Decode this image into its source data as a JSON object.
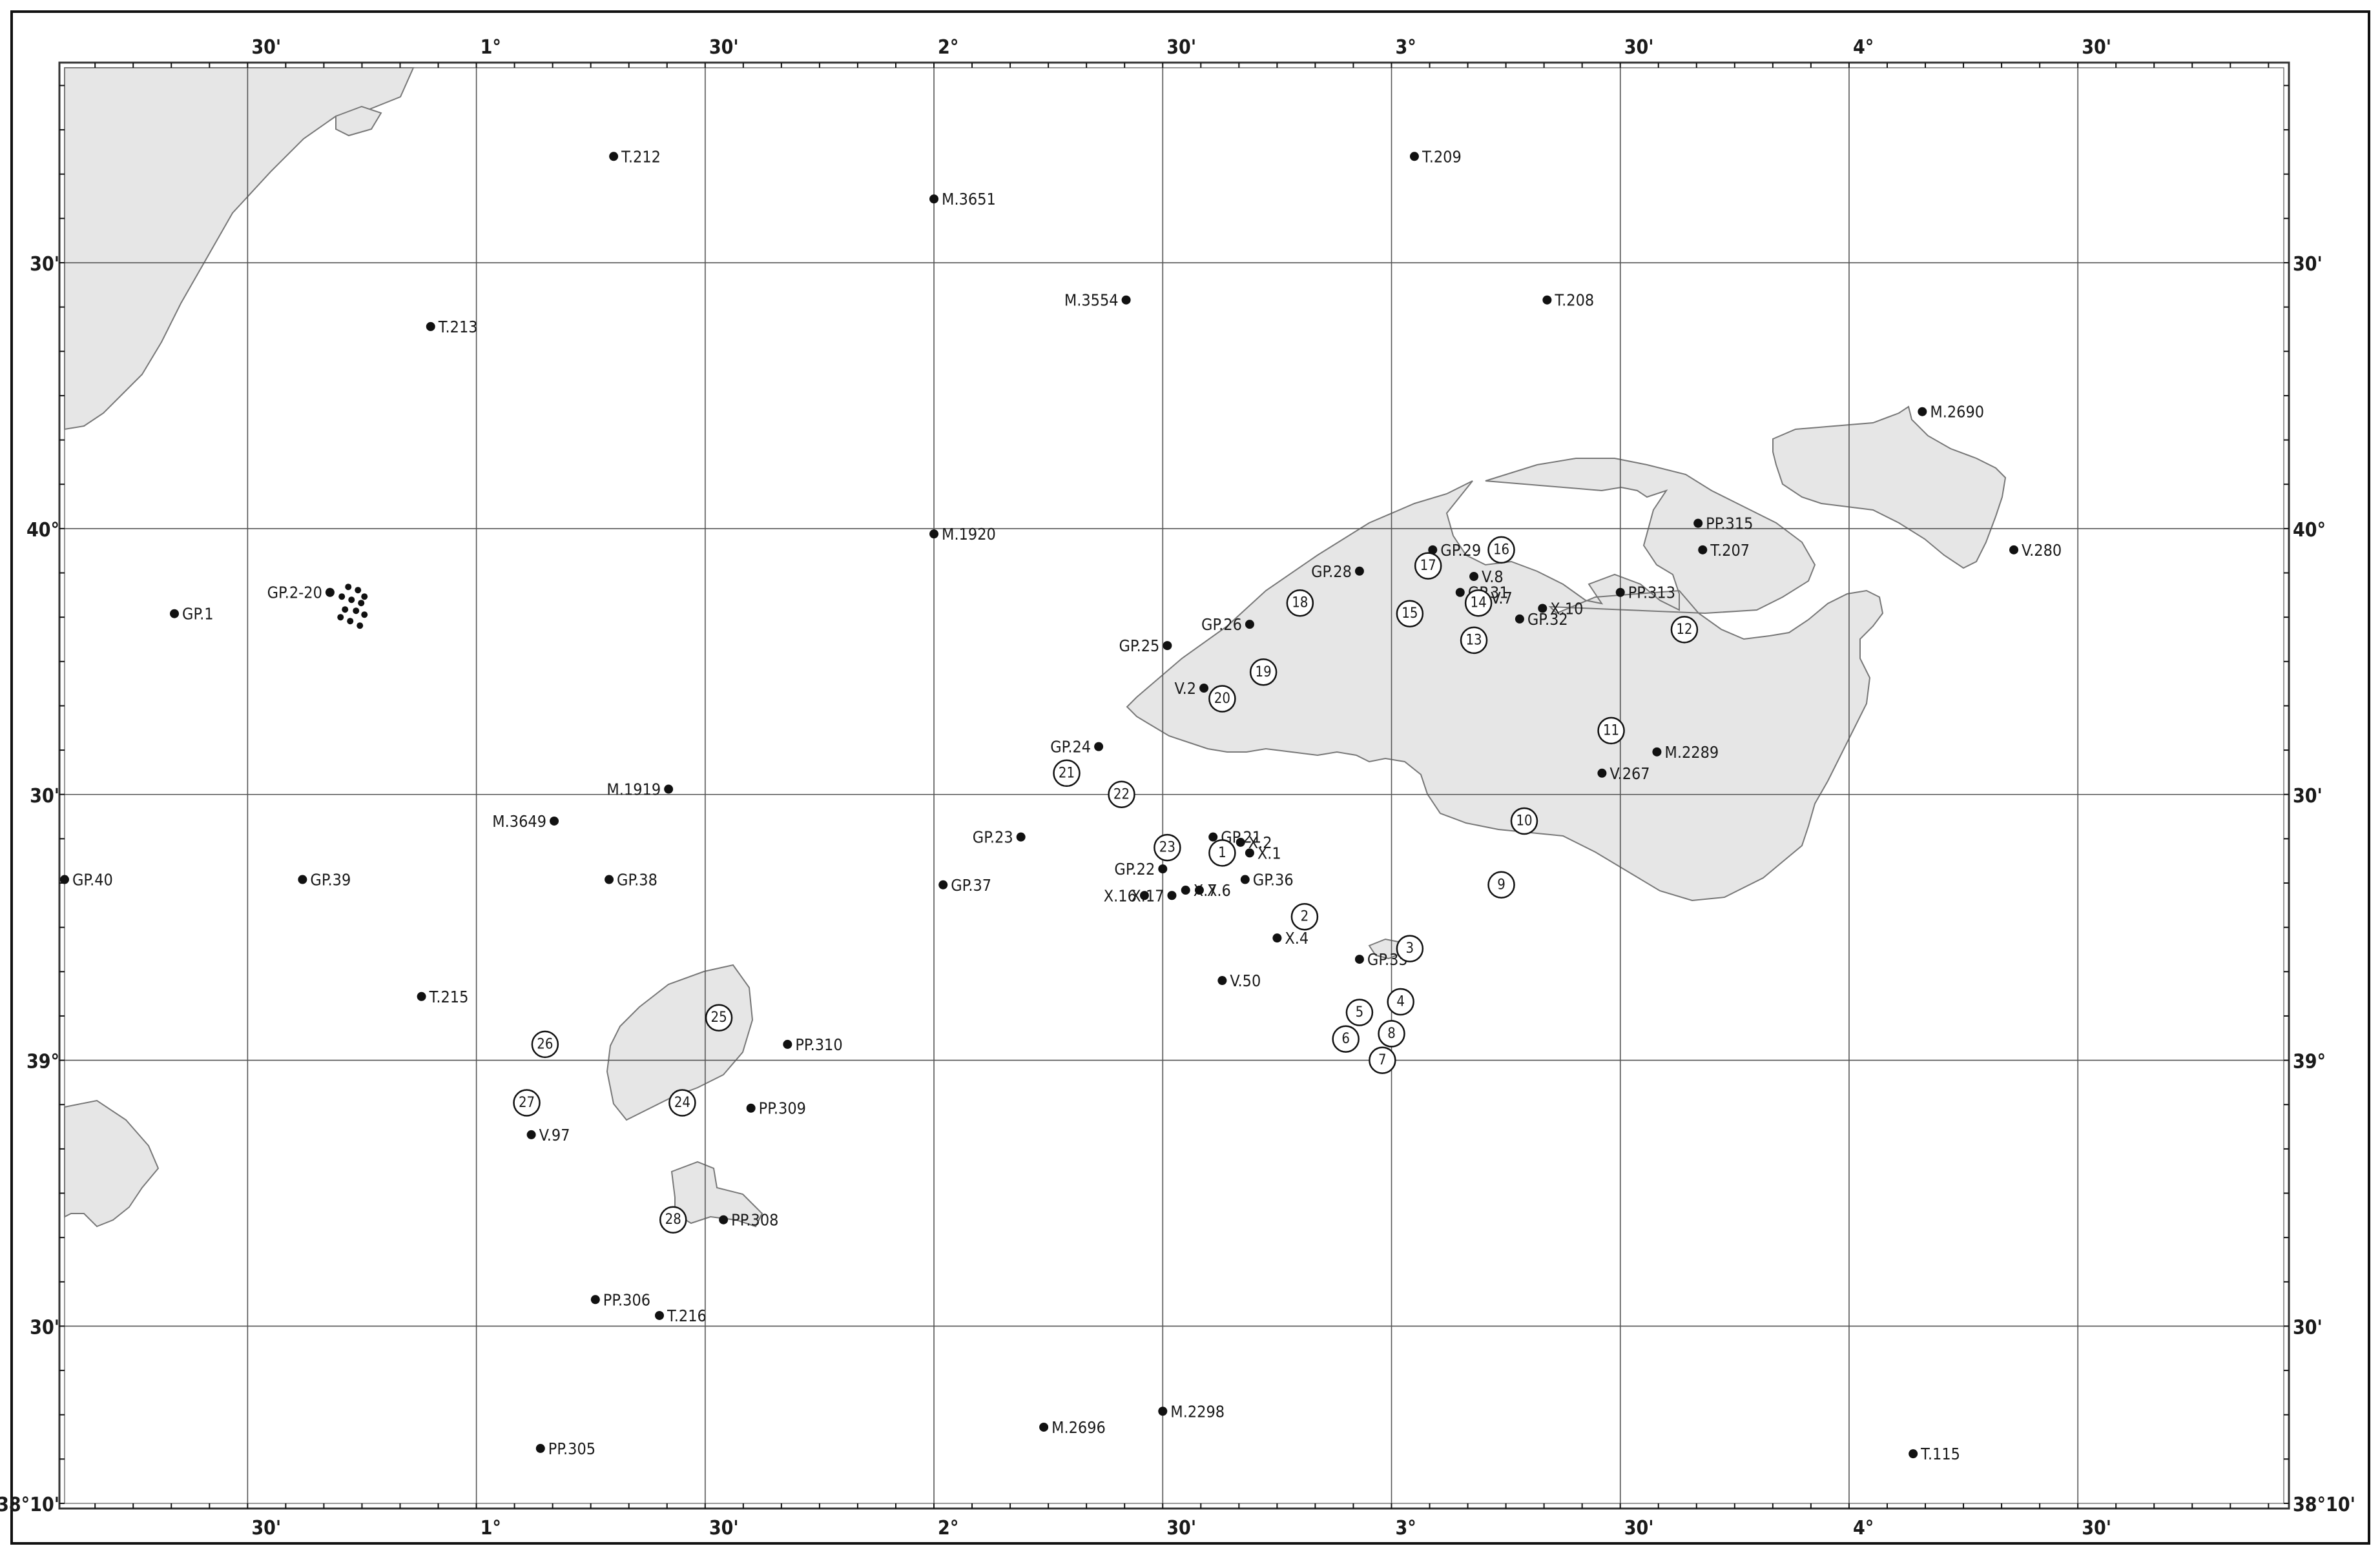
{
  "map": {
    "lon_range": [
      0.1,
      4.95
    ],
    "lat_range": [
      38.1667,
      40.8667
    ],
    "colors": {
      "land": "#e6e6e6",
      "coast": "#777777",
      "grid": "#555555",
      "ink": "#111111"
    }
  },
  "axes": {
    "top": [
      "30'",
      "1°",
      "30'",
      "2°",
      "30'",
      "3°",
      "30'",
      "4°",
      "30'"
    ],
    "bottom": [
      "30'",
      "1°",
      "30'",
      "2°",
      "30'",
      "3°",
      "30'",
      "4°",
      "30'"
    ],
    "left": [
      "30'",
      "40°",
      "30'",
      "39°",
      "30'",
      "38°10'"
    ],
    "right": [
      "30'",
      "40°",
      "30'",
      "39°",
      "30'",
      "38°10'"
    ]
  },
  "stations": [
    {
      "label": "T.212",
      "lon": 1.3,
      "lat": 40.7
    },
    {
      "label": "T.209",
      "lon": 3.05,
      "lat": 40.7
    },
    {
      "label": "M.3651",
      "lon": 2.0,
      "lat": 40.62
    },
    {
      "label": "M.3554",
      "lon": 2.42,
      "lat": 40.43
    },
    {
      "label": "T.208",
      "lon": 3.34,
      "lat": 40.43
    },
    {
      "label": "T.213",
      "lon": 0.9,
      "lat": 40.38
    },
    {
      "label": "M.2690",
      "lon": 4.16,
      "lat": 40.22
    },
    {
      "label": "M.1920",
      "lon": 2.0,
      "lat": 39.99
    },
    {
      "label": "PP.315",
      "lon": 3.67,
      "lat": 40.01
    },
    {
      "label": "T.207",
      "lon": 3.68,
      "lat": 39.96
    },
    {
      "label": "V.280",
      "lon": 4.36,
      "lat": 39.96
    },
    {
      "label": "GP.29",
      "lon": 3.09,
      "lat": 39.96
    },
    {
      "label": "GP.28",
      "lon": 2.93,
      "lat": 39.92
    },
    {
      "label": "V.8",
      "lon": 3.18,
      "lat": 39.91
    },
    {
      "label": "GP.31",
      "lon": 3.15,
      "lat": 39.88
    },
    {
      "label": "V.7",
      "lon": 3.2,
      "lat": 39.87
    },
    {
      "label": "X.10",
      "lon": 3.33,
      "lat": 39.85
    },
    {
      "label": "PP.313",
      "lon": 3.5,
      "lat": 39.88
    },
    {
      "label": "GP.32",
      "lon": 3.28,
      "lat": 39.83
    },
    {
      "label": "GP.26",
      "lon": 2.69,
      "lat": 39.82
    },
    {
      "label": "GP.25",
      "lon": 2.51,
      "lat": 39.78
    },
    {
      "label": "V.2",
      "lon": 2.59,
      "lat": 39.7
    },
    {
      "label": "GP.24",
      "lon": 2.36,
      "lat": 39.59
    },
    {
      "label": "M.2289",
      "lon": 3.58,
      "lat": 39.58
    },
    {
      "label": "V.267",
      "lon": 3.46,
      "lat": 39.54
    },
    {
      "label": "GP.1",
      "lon": 0.34,
      "lat": 39.84
    },
    {
      "label": "GP.2-20",
      "lon": 0.68,
      "lat": 39.88
    },
    {
      "label": "M.1919",
      "lon": 1.42,
      "lat": 39.51
    },
    {
      "label": "M.3649",
      "lon": 1.17,
      "lat": 39.45
    },
    {
      "label": "GP.23",
      "lon": 2.19,
      "lat": 39.42
    },
    {
      "label": "GP.21",
      "lon": 2.61,
      "lat": 39.42
    },
    {
      "label": "X.2",
      "lon": 2.67,
      "lat": 39.41
    },
    {
      "label": "X.1",
      "lon": 2.69,
      "lat": 39.39
    },
    {
      "label": "GP.22",
      "lon": 2.5,
      "lat": 39.36
    },
    {
      "label": "GP.36",
      "lon": 2.68,
      "lat": 39.34
    },
    {
      "label": "X.7",
      "lon": 2.55,
      "lat": 39.32
    },
    {
      "label": "X.6",
      "lon": 2.58,
      "lat": 39.32
    },
    {
      "label": "X.16",
      "lon": 2.46,
      "lat": 39.31
    },
    {
      "label": "X.17",
      "lon": 2.52,
      "lat": 39.31
    },
    {
      "label": "GP.40",
      "lon": 0.1,
      "lat": 39.34
    },
    {
      "label": "GP.39",
      "lon": 0.62,
      "lat": 39.34
    },
    {
      "label": "GP.38",
      "lon": 1.29,
      "lat": 39.34
    },
    {
      "label": "GP.37",
      "lon": 2.02,
      "lat": 39.33
    },
    {
      "label": "X.4",
      "lon": 2.75,
      "lat": 39.23
    },
    {
      "label": "GP.35",
      "lon": 2.93,
      "lat": 39.19
    },
    {
      "label": "V.50",
      "lon": 2.63,
      "lat": 39.15
    },
    {
      "label": "T.215",
      "lon": 0.88,
      "lat": 39.12
    },
    {
      "label": "PP.310",
      "lon": 1.68,
      "lat": 39.03
    },
    {
      "label": "PP.309",
      "lon": 1.6,
      "lat": 38.91
    },
    {
      "label": "V.97",
      "lon": 1.12,
      "lat": 38.86
    },
    {
      "label": "PP.308",
      "lon": 1.54,
      "lat": 38.7
    },
    {
      "label": "PP.306",
      "lon": 1.26,
      "lat": 38.55
    },
    {
      "label": "T.216",
      "lon": 1.4,
      "lat": 38.52
    },
    {
      "label": "M.2298",
      "lon": 2.5,
      "lat": 38.34
    },
    {
      "label": "M.2696",
      "lon": 2.24,
      "lat": 38.31
    },
    {
      "label": "PP.305",
      "lon": 1.14,
      "lat": 38.27
    },
    {
      "label": "T.115",
      "lon": 4.14,
      "lat": 38.26
    }
  ],
  "numbered_points": [
    {
      "label": "1",
      "lon": 2.63,
      "lat": 39.39
    },
    {
      "label": "2",
      "lon": 2.81,
      "lat": 39.27
    },
    {
      "label": "3",
      "lon": 3.04,
      "lat": 39.21
    },
    {
      "label": "4",
      "lon": 3.02,
      "lat": 39.11
    },
    {
      "label": "5",
      "lon": 2.93,
      "lat": 39.09
    },
    {
      "label": "6",
      "lon": 2.9,
      "lat": 39.04
    },
    {
      "label": "7",
      "lon": 2.98,
      "lat": 39.0
    },
    {
      "label": "8",
      "lon": 3.0,
      "lat": 39.05
    },
    {
      "label": "9",
      "lon": 3.24,
      "lat": 39.33
    },
    {
      "label": "10",
      "lon": 3.29,
      "lat": 39.45
    },
    {
      "label": "11",
      "lon": 3.48,
      "lat": 39.62
    },
    {
      "label": "12",
      "lon": 3.64,
      "lat": 39.81
    },
    {
      "label": "13",
      "lon": 3.18,
      "lat": 39.79
    },
    {
      "label": "14",
      "lon": 3.19,
      "lat": 39.86
    },
    {
      "label": "15",
      "lon": 3.04,
      "lat": 39.84
    },
    {
      "label": "16",
      "lon": 3.24,
      "lat": 39.96
    },
    {
      "label": "17",
      "lon": 3.08,
      "lat": 39.93
    },
    {
      "label": "18",
      "lon": 2.8,
      "lat": 39.86
    },
    {
      "label": "19",
      "lon": 2.72,
      "lat": 39.73
    },
    {
      "label": "20",
      "lon": 2.63,
      "lat": 39.68
    },
    {
      "label": "21",
      "lon": 2.29,
      "lat": 39.54
    },
    {
      "label": "22",
      "lon": 2.41,
      "lat": 39.5
    },
    {
      "label": "23",
      "lon": 2.51,
      "lat": 39.4
    },
    {
      "label": "24",
      "lon": 1.45,
      "lat": 38.92
    },
    {
      "label": "25",
      "lon": 1.53,
      "lat": 39.08
    },
    {
      "label": "26",
      "lon": 1.15,
      "lat": 39.03
    },
    {
      "label": "27",
      "lon": 1.11,
      "lat": 38.92
    },
    {
      "label": "28",
      "lon": 1.43,
      "lat": 38.7
    }
  ],
  "gp_cluster_dots": 12
}
